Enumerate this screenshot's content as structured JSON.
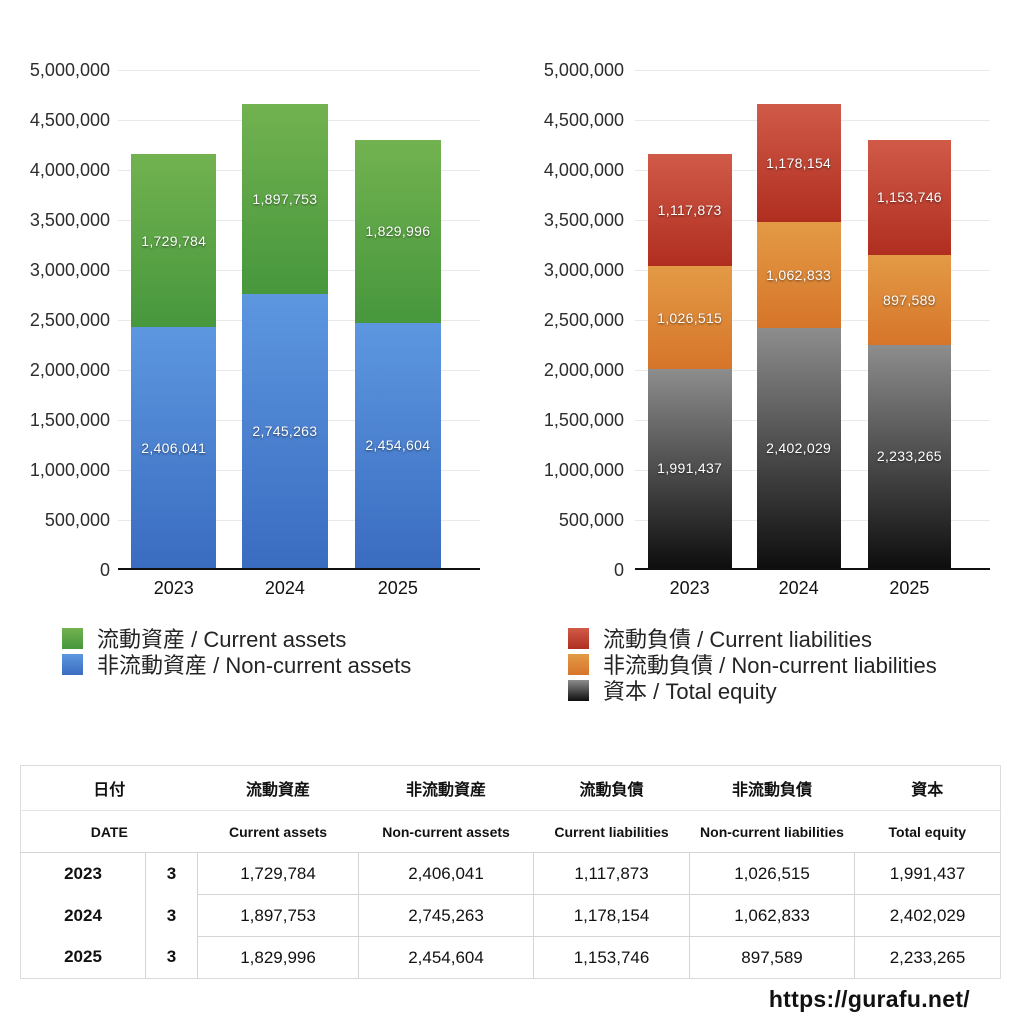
{
  "chart_data": [
    {
      "type": "bar",
      "subtype": "stacked",
      "title": "",
      "categories": [
        "2023",
        "2024",
        "2025"
      ],
      "series": [
        {
          "name": "非流動資産 / Non-current assets",
          "values": [
            2406041,
            2745263,
            2454604
          ],
          "value_labels": [
            "2,406,041",
            "2,745,263",
            "2,454,604"
          ],
          "color_top": "#5d97e0",
          "color_bottom": "#3a6cc0"
        },
        {
          "name": "流動資産 / Current assets",
          "values": [
            1729784,
            1897753,
            1829996
          ],
          "value_labels": [
            "1,729,784",
            "1,897,753",
            "1,829,996"
          ],
          "color_top": "#72b250",
          "color_bottom": "#47973d"
        }
      ],
      "stack_order": "bottom-to-top",
      "xlabel": "",
      "ylabel": "",
      "ylim": [
        0,
        5000000
      ],
      "y_tick_step": 500000,
      "y_ticks": [
        "5,000,000",
        "4,500,000",
        "4,000,000",
        "3,500,000",
        "3,000,000",
        "2,500,000",
        "2,000,000",
        "1,500,000",
        "1,000,000",
        "500,000",
        "0"
      ],
      "grid": true,
      "legend_position": "below-left",
      "legend": [
        {
          "label": "流動資産 / Current assets",
          "color_top": "#72b250",
          "color_bottom": "#47973d"
        },
        {
          "label": "非流動資産 / Non-current assets",
          "color_top": "#5d97e0",
          "color_bottom": "#3a6cc0"
        }
      ]
    },
    {
      "type": "bar",
      "subtype": "stacked",
      "title": "",
      "categories": [
        "2023",
        "2024",
        "2025"
      ],
      "series": [
        {
          "name": "資本 / Total equity",
          "values": [
            1991437,
            2402029,
            2233265
          ],
          "value_labels": [
            "1,991,437",
            "2,402,029",
            "2,233,265"
          ],
          "color_top": "#8d8d8d",
          "color_bottom": "#0e0e0e"
        },
        {
          "name": "非流動負債 / Non-current liabilities",
          "values": [
            1026515,
            1062833,
            897589
          ],
          "value_labels": [
            "1,026,515",
            "1,062,833",
            "897,589"
          ],
          "color_top": "#e39a45",
          "color_bottom": "#d6752a"
        },
        {
          "name": "流動負債 / Current liabilities",
          "values": [
            1117873,
            1178154,
            1153746
          ],
          "value_labels": [
            "1,117,873",
            "1,178,154",
            "1,153,746"
          ],
          "color_top": "#d05a48",
          "color_bottom": "#b02e20"
        }
      ],
      "stack_order": "bottom-to-top",
      "xlabel": "",
      "ylabel": "",
      "ylim": [
        0,
        5000000
      ],
      "y_tick_step": 500000,
      "y_ticks": [
        "5,000,000",
        "4,500,000",
        "4,000,000",
        "3,500,000",
        "3,000,000",
        "2,500,000",
        "2,000,000",
        "1,500,000",
        "1,000,000",
        "500,000",
        "0"
      ],
      "grid": true,
      "legend_position": "below-left",
      "legend": [
        {
          "label": "流動負債 / Current liabilities",
          "color_top": "#d05a48",
          "color_bottom": "#b02e20"
        },
        {
          "label": "非流動負債 / Non-current liabilities",
          "color_top": "#e39a45",
          "color_bottom": "#d6752a"
        },
        {
          "label": "資本 / Total equity",
          "color_top": "#8d8d8d",
          "color_bottom": "#0e0e0e"
        }
      ]
    }
  ],
  "table": {
    "columns_ja": [
      "日付",
      "流動資産",
      "非流動資産",
      "流動負債",
      "非流動負債",
      "資本"
    ],
    "columns_en": [
      "DATE",
      "Current assets",
      "Non-current assets",
      "Current liabilities",
      "Non-current liabilities",
      "Total equity"
    ],
    "rows": [
      {
        "year": "2023",
        "month": "3",
        "current_assets": "1,729,784",
        "non_current_assets": "2,406,041",
        "current_liabilities": "1,117,873",
        "non_current_liabilities": "1,026,515",
        "total_equity": "1,991,437"
      },
      {
        "year": "2024",
        "month": "3",
        "current_assets": "1,897,753",
        "non_current_assets": "2,745,263",
        "current_liabilities": "1,178,154",
        "non_current_liabilities": "1,062,833",
        "total_equity": "2,402,029"
      },
      {
        "year": "2025",
        "month": "3",
        "current_assets": "1,829,996",
        "non_current_assets": "2,454,604",
        "current_liabilities": "1,153,746",
        "non_current_liabilities": "897,589",
        "total_equity": "2,233,265"
      }
    ]
  },
  "footer": {
    "url_text": "https://gurafu.net/"
  }
}
